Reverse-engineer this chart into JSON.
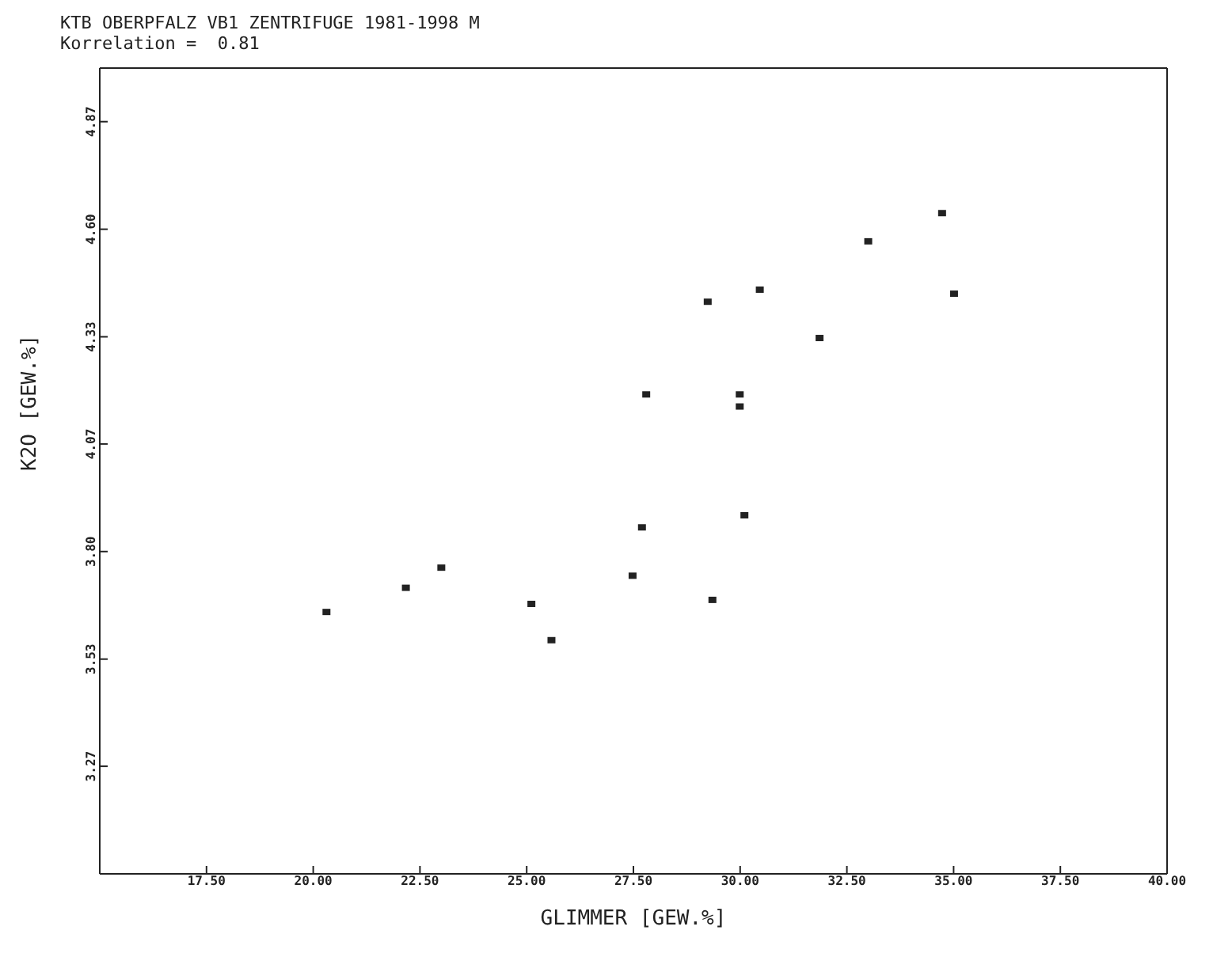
{
  "chart_data": {
    "type": "scatter",
    "title": "KTB OBERPFALZ VB1 ZENTRIFUGE 1981-1998 M",
    "subtitle": "Korrelation =  0.81",
    "xlabel": "GLIMMER [GEW.%]",
    "ylabel": "K2O [GEW.%]",
    "x": [
      20.31,
      22.17,
      23.0,
      25.11,
      25.58,
      27.48,
      27.7,
      27.8,
      29.24,
      29.35,
      30.46,
      29.99,
      29.99,
      30.1,
      31.86,
      33.0,
      34.73,
      35.01
    ],
    "series": [
      {
        "color": "#222222",
        "values": [
          3.65,
          3.71,
          3.76,
          3.67,
          3.58,
          3.74,
          3.86,
          4.19,
          4.42,
          3.68,
          4.45,
          4.19,
          4.16,
          3.89,
          4.33,
          4.57,
          4.64,
          4.44
        ]
      }
    ],
    "xlim": [
      15,
      40
    ],
    "ylim": [
      3.0,
      5.0
    ],
    "xticks": [
      {
        "value": 17.5,
        "label": "17.50"
      },
      {
        "value": 20,
        "label": "20.00"
      },
      {
        "value": 22.5,
        "label": "22.50"
      },
      {
        "value": 25,
        "label": "25.00"
      },
      {
        "value": 27.5,
        "label": "27.50"
      },
      {
        "value": 30,
        "label": "30.00"
      },
      {
        "value": 32.5,
        "label": "32.50"
      },
      {
        "value": 35,
        "label": "35.00"
      },
      {
        "value": 37.5,
        "label": "37.50"
      },
      {
        "value": 40,
        "label": "40.00"
      }
    ],
    "yticks": [
      {
        "value": 3.267,
        "label": "3.27"
      },
      {
        "value": 3.533,
        "label": "3.53"
      },
      {
        "value": 3.8,
        "label": "3.80"
      },
      {
        "value": 4.067,
        "label": "4.07"
      },
      {
        "value": 4.333,
        "label": "4.33"
      },
      {
        "value": 4.6,
        "label": "4.60"
      },
      {
        "value": 4.867,
        "label": "4.87"
      }
    ],
    "marker": "square",
    "grid": false,
    "legend": false
  }
}
